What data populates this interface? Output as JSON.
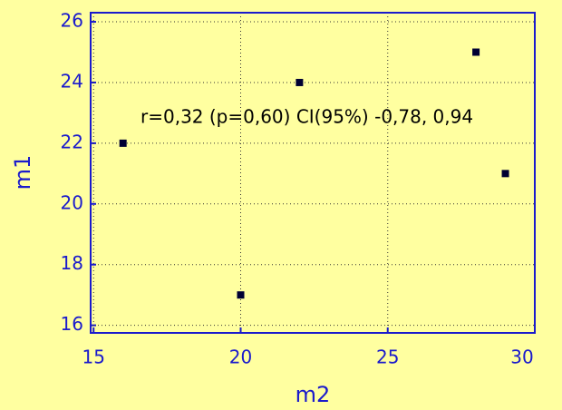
{
  "chart_data": {
    "type": "scatter",
    "x_label": "m2",
    "y_label": "m1",
    "annotation": "r=0,32 (p=0,60) CI(95%) -0,78, 0,94",
    "x": [
      16,
      20,
      22,
      28,
      29
    ],
    "values": [
      22,
      17,
      24,
      25,
      21
    ],
    "color": "#000033",
    "xlim": [
      14.9,
      30.0
    ],
    "xticks": [
      15,
      20,
      25,
      30
    ],
    "ylim": [
      15.75,
      26.3
    ],
    "yticks": [
      16,
      18,
      20,
      22,
      24,
      26
    ],
    "grid": true
  }
}
